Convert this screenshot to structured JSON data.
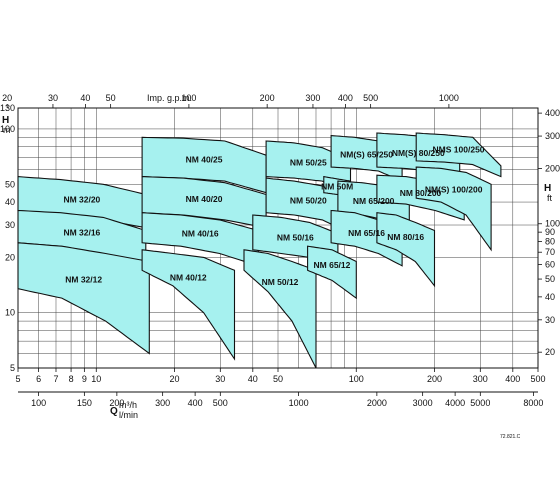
{
  "chart_data": {
    "type": "area",
    "title": "",
    "x_axis_bottom": {
      "label": "Q",
      "unit": "m³/h",
      "ticks": [
        "5",
        "6",
        "7",
        "8",
        "9",
        "10",
        "20",
        "30",
        "40",
        "50",
        "100",
        "200",
        "300",
        "400",
        "500"
      ],
      "tick_values": [
        5,
        6,
        7,
        8,
        9,
        10,
        20,
        30,
        40,
        50,
        100,
        200,
        300,
        400,
        500
      ],
      "range": [
        5,
        500
      ],
      "scale": "log"
    },
    "x_axis_secondary": {
      "unit": "l/min",
      "ticks": [
        "100",
        "150",
        "200",
        "300",
        "400",
        "500",
        "1000",
        "2000",
        "3000",
        "4000",
        "5000",
        "8000"
      ],
      "tick_values": [
        100,
        150,
        200,
        300,
        400,
        500,
        1000,
        2000,
        3000,
        4000,
        5000,
        8000
      ]
    },
    "x_axis_top": {
      "label": "Imp. g.p.m.",
      "ticks": [
        "20",
        "30",
        "40",
        "50",
        "100",
        "200",
        "300",
        "400",
        "500",
        "1000"
      ],
      "tick_values": [
        20,
        30,
        40,
        50,
        100,
        200,
        300,
        400,
        500,
        1000
      ]
    },
    "y_axis_left": {
      "label": "H",
      "unit": "m",
      "ticks": [
        "5",
        "10",
        "20",
        "30",
        "40",
        "50",
        "100",
        "130"
      ],
      "tick_values": [
        5,
        10,
        20,
        30,
        40,
        50,
        100,
        130
      ],
      "range": [
        5,
        130
      ],
      "scale": "log"
    },
    "y_axis_right": {
      "label": "H",
      "unit": "ft",
      "ticks": [
        "20",
        "30",
        "40",
        "50",
        "60",
        "70",
        "80",
        "90",
        "100",
        "200",
        "300",
        "400"
      ],
      "tick_values": [
        20,
        30,
        40,
        50,
        60,
        70,
        80,
        90,
        100,
        200,
        300,
        400
      ]
    },
    "grid": true,
    "reference_code": "72.821.C",
    "series": [
      {
        "name": "NM 32/20",
        "q_range": [
          5,
          15.5
        ],
        "h_top": [
          55,
          53,
          50,
          44
        ],
        "h_bottom": [
          36,
          34,
          32,
          29
        ]
      },
      {
        "name": "NM 32/16",
        "q_range": [
          5,
          15.5
        ],
        "h_top": [
          36,
          35,
          33,
          28
        ],
        "h_bottom": [
          24,
          23,
          21,
          18
        ]
      },
      {
        "name": "NM 32/12",
        "q_range": [
          5,
          16
        ],
        "h_top": [
          24,
          23,
          21,
          19
        ],
        "h_bottom": [
          13.5,
          12,
          9,
          6
        ]
      },
      {
        "name": "NM 40/25",
        "q_range": [
          15,
          45
        ],
        "h_top": [
          90,
          89,
          86,
          72
        ],
        "h_bottom": [
          55,
          54,
          52,
          45
        ]
      },
      {
        "name": "NM 40/20",
        "q_range": [
          15,
          45
        ],
        "h_top": [
          55,
          54,
          51,
          44
        ],
        "h_bottom": [
          35,
          34,
          32,
          29
        ]
      },
      {
        "name": "NM 40/16",
        "q_range": [
          15,
          42
        ],
        "h_top": [
          35,
          34,
          32,
          28
        ],
        "h_bottom": [
          24,
          23,
          21,
          18
        ]
      },
      {
        "name": "NM 40/12",
        "q_range": [
          15,
          34
        ],
        "h_top": [
          22,
          21,
          20,
          17
        ],
        "h_bottom": [
          17,
          14,
          10,
          5.6
        ]
      },
      {
        "name": "NM 50/25",
        "q_range": [
          45,
          95
        ],
        "h_top": [
          86,
          84,
          79,
          68
        ],
        "h_bottom": [
          55,
          54,
          52,
          43
        ]
      },
      {
        "name": "NM 50/20",
        "q_range": [
          45,
          95
        ],
        "h_top": [
          54,
          52,
          49,
          42
        ],
        "h_bottom": [
          35,
          34,
          32,
          27
        ]
      },
      {
        "name": "NM 50/16",
        "q_range": [
          40,
          85
        ],
        "h_top": [
          34,
          33,
          31,
          27
        ],
        "h_bottom": [
          22,
          21,
          20,
          18
        ]
      },
      {
        "name": "NM 50/12",
        "q_range": [
          37,
          70
        ],
        "h_top": [
          22,
          21,
          19,
          17
        ],
        "h_bottom": [
          17,
          13,
          9,
          5
        ]
      },
      {
        "name": "NM(S) 65/250",
        "q_range": [
          80,
          150
        ],
        "h_top": [
          92,
          90,
          86,
          75
        ],
        "h_bottom": [
          62,
          61,
          59,
          52
        ]
      },
      {
        "name": "NM 50M",
        "q_range": [
          75,
          95
        ],
        "h_top": [
          55,
          52
        ],
        "h_bottom": [
          45,
          43
        ]
      },
      {
        "name": "NM 65/200",
        "q_range": [
          85,
          160
        ],
        "h_top": [
          52,
          51,
          49,
          43
        ],
        "h_bottom": [
          35,
          34,
          32,
          28
        ]
      },
      {
        "name": "NM 65/16",
        "q_range": [
          80,
          150
        ],
        "h_top": [
          36,
          35,
          32,
          28
        ],
        "h_bottom": [
          24,
          23,
          21,
          18
        ]
      },
      {
        "name": "NM 65/12",
        "q_range": [
          65,
          100
        ],
        "h_top": [
          23,
          22,
          19
        ],
        "h_bottom": [
          17,
          15,
          12
        ]
      },
      {
        "name": "NM(S) 80/250",
        "q_range": [
          120,
          250
        ],
        "h_top": [
          95,
          93,
          90,
          78
        ],
        "h_bottom": [
          62,
          61,
          59,
          50
        ]
      },
      {
        "name": "NM 80/200",
        "q_range": [
          120,
          260
        ],
        "h_top": [
          56,
          55,
          52,
          45
        ],
        "h_bottom": [
          40,
          39,
          36,
          32
        ]
      },
      {
        "name": "NM 80/16",
        "q_range": [
          120,
          200
        ],
        "h_top": [
          35,
          34,
          31,
          28
        ],
        "h_bottom": [
          24,
          22,
          19,
          14
        ]
      },
      {
        "name": "NMS 100/250",
        "q_range": [
          170,
          360
        ],
        "h_top": [
          95,
          93,
          90,
          63
        ],
        "h_bottom": [
          67,
          66,
          64,
          55
        ]
      },
      {
        "name": "NM(S) 100/200",
        "q_range": [
          170,
          330
        ],
        "h_top": [
          62,
          61,
          58,
          50
        ],
        "h_bottom": [
          42,
          40,
          34,
          22
        ]
      }
    ]
  }
}
